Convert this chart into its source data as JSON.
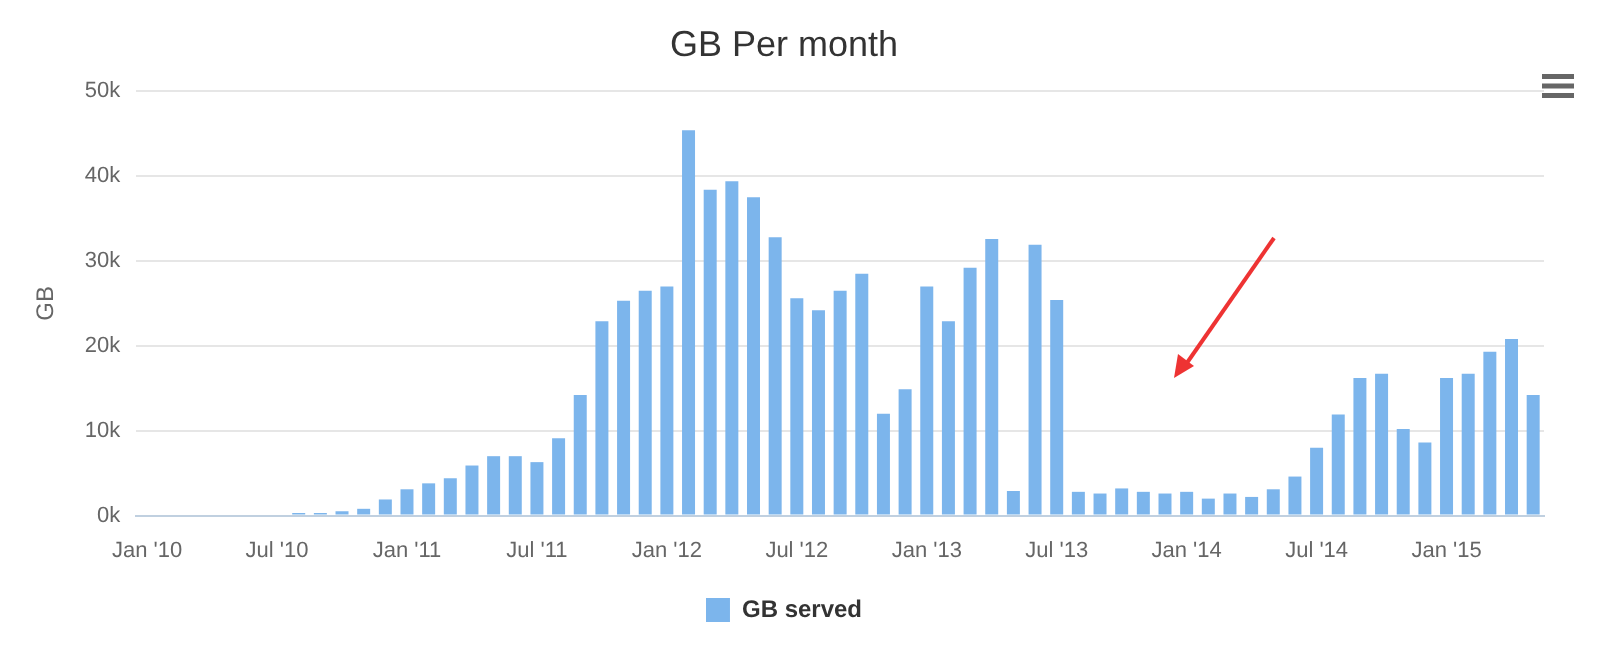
{
  "chart_data": {
    "type": "bar",
    "title": "GB Per month",
    "ylabel": "GB",
    "categories": [
      "Jan '10",
      null,
      null,
      null,
      null,
      null,
      "Jul '10",
      null,
      null,
      null,
      null,
      null,
      "Jan '11",
      null,
      null,
      null,
      null,
      null,
      "Jul '11",
      null,
      null,
      null,
      null,
      null,
      "Jan '12",
      null,
      null,
      null,
      null,
      null,
      "Jul '12",
      null,
      null,
      null,
      null,
      null,
      "Jan '13",
      null,
      null,
      null,
      null,
      null,
      "Jul '13",
      null,
      null,
      null,
      null,
      null,
      "Jan '14",
      null,
      null,
      null,
      null,
      null,
      "Jul '14",
      null,
      null,
      null,
      null,
      null,
      "Jan '15",
      null,
      null,
      null,
      null
    ],
    "series": [
      {
        "name": "GB served",
        "color": "#7cb5ec",
        "values": [
          null,
          null,
          null,
          null,
          null,
          null,
          null,
          300,
          300,
          500,
          800,
          1900,
          3100,
          3800,
          4400,
          5900,
          7000,
          7000,
          6300,
          9100,
          14200,
          22900,
          25300,
          26500,
          27000,
          45400,
          38400,
          39400,
          37500,
          32800,
          25600,
          24200,
          26500,
          28500,
          12000,
          14900,
          27000,
          22900,
          29200,
          32600,
          2900,
          31900,
          25400,
          2800,
          2600,
          3200,
          2800,
          2600,
          2800,
          2000,
          2600,
          2200,
          3100,
          4600,
          8000,
          11900,
          16200,
          16700,
          10200,
          8600,
          16200,
          16700,
          19300,
          20800,
          14200
        ]
      }
    ],
    "ylim": [
      0,
      50000
    ],
    "yticks": [
      {
        "value": 0,
        "label": "0k"
      },
      {
        "value": 10000,
        "label": "10k"
      },
      {
        "value": 20000,
        "label": "20k"
      },
      {
        "value": 30000,
        "label": "30k"
      },
      {
        "value": 40000,
        "label": "40k"
      },
      {
        "value": 50000,
        "label": "50k"
      }
    ],
    "grid": "y",
    "legend": "bottom"
  }
}
